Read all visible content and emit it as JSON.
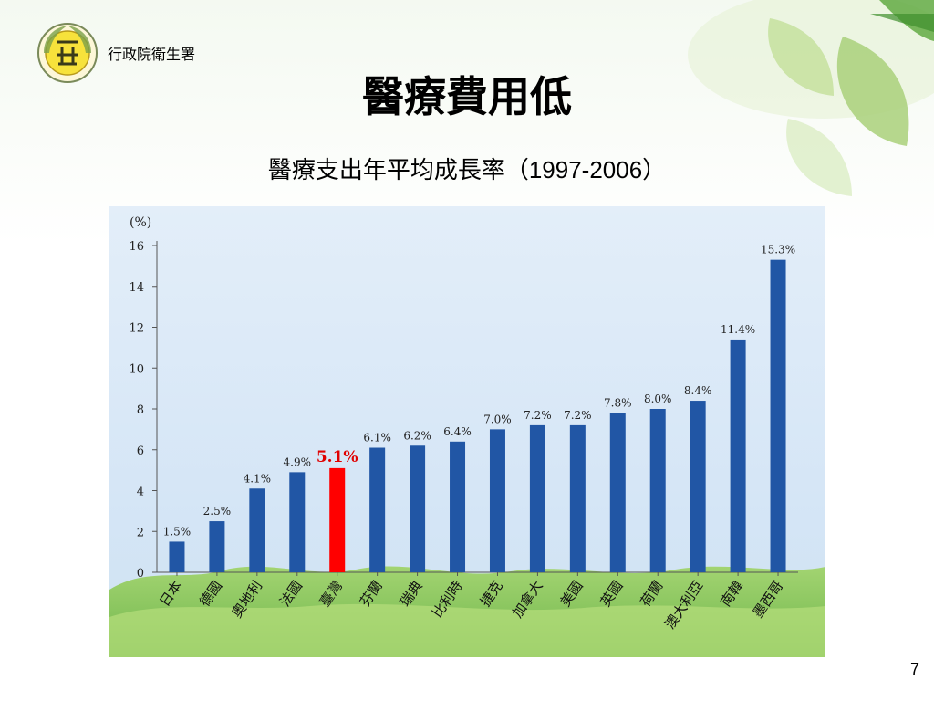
{
  "header": {
    "org_name": "行政院衛生署",
    "title": "醫療費用低",
    "subtitle_text": "醫療支出年平均成長率（",
    "subtitle_years": "1997-2006",
    "subtitle_close": "）"
  },
  "page_number": "7",
  "colors": {
    "bar": "#2156a5",
    "highlight_bar": "#ff0000",
    "highlight_label": "#e00000",
    "chart_bg": "#dbe9f7",
    "grass": "#7cc043"
  },
  "chart_data": {
    "type": "bar",
    "title": "",
    "xlabel": "",
    "ylabel": "(%)",
    "ylim": [
      0,
      16
    ],
    "yticks": [
      0,
      2,
      4,
      6,
      8,
      10,
      12,
      14,
      16
    ],
    "grid": false,
    "categories": [
      "日本",
      "德國",
      "奧地利",
      "法國",
      "臺灣",
      "芬蘭",
      "瑞典",
      "比利時",
      "捷克",
      "加拿大",
      "美國",
      "英國",
      "荷蘭",
      "澳大利亞",
      "南韓",
      "墨西哥"
    ],
    "values": [
      1.5,
      2.5,
      4.1,
      4.9,
      5.1,
      6.1,
      6.2,
      6.4,
      7.0,
      7.2,
      7.2,
      7.8,
      8.0,
      8.4,
      11.4,
      15.3
    ],
    "data_labels": [
      "1.5%",
      "2.5%",
      "4.1%",
      "4.9%",
      "5.1%",
      "6.1%",
      "6.2%",
      "6.4%",
      "7.0%",
      "7.2%",
      "7.2%",
      "7.8%",
      "8.0%",
      "8.4%",
      "11.4%",
      "15.3%"
    ],
    "highlight_index": 4
  }
}
